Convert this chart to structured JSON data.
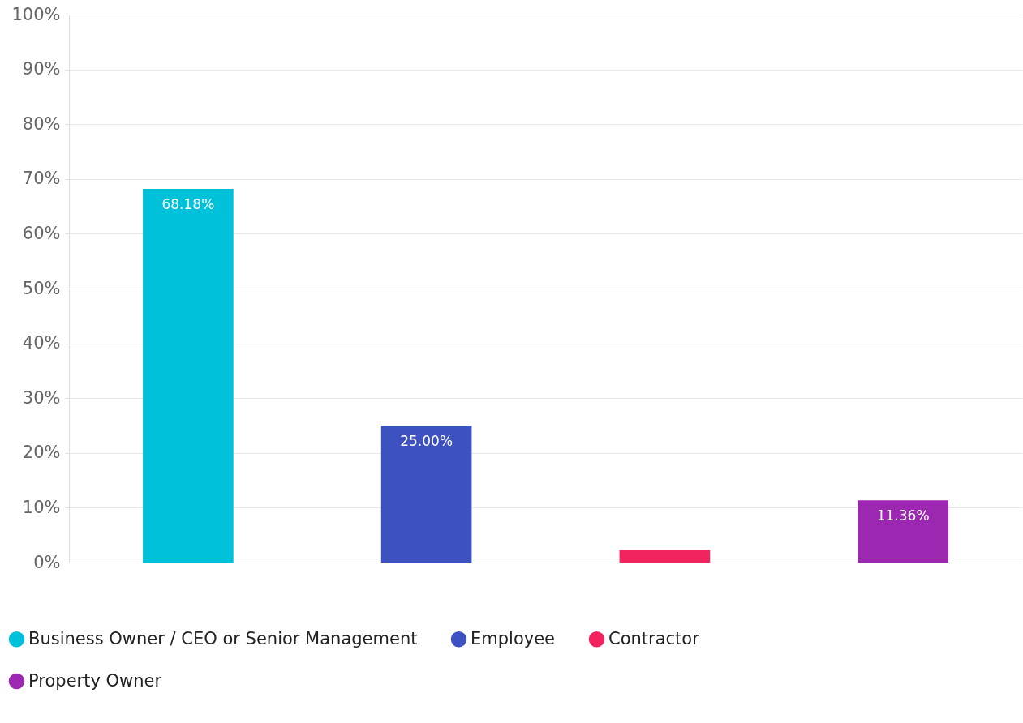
{
  "chart_data": {
    "type": "bar",
    "categories": [
      null,
      null,
      null,
      null
    ],
    "series": [
      {
        "name": "Business Owner / CEO or Senior Management",
        "color": "#00c1da",
        "values": [
          68.18,
          null,
          null,
          null
        ],
        "value_labels": [
          "68.18%",
          null,
          null,
          null
        ]
      },
      {
        "name": "Employee",
        "color": "#3d51c1",
        "values": [
          null,
          25.0,
          null,
          null
        ],
        "value_labels": [
          null,
          "25.00%",
          null,
          null
        ]
      },
      {
        "name": "Contractor",
        "color": "#f1245f",
        "values": [
          null,
          null,
          2.3,
          null
        ]
      },
      {
        "name": "Property Owner",
        "color": "#9c27b0",
        "values": [
          null,
          null,
          null,
          11.36
        ],
        "value_labels": [
          null,
          null,
          null,
          "11.36%"
        ]
      }
    ],
    "ylim": [
      0,
      100
    ],
    "yticks": [
      {
        "value": 0,
        "label": "0%"
      },
      {
        "value": 10,
        "label": "10%"
      },
      {
        "value": 20,
        "label": "20%"
      },
      {
        "value": 30,
        "label": "30%"
      },
      {
        "value": 40,
        "label": "40%"
      },
      {
        "value": 50,
        "label": "50%"
      },
      {
        "value": 60,
        "label": "60%"
      },
      {
        "value": 70,
        "label": "70%"
      },
      {
        "value": 80,
        "label": "80%"
      },
      {
        "value": 90,
        "label": "90%"
      },
      {
        "value": 100,
        "label": "100%"
      }
    ],
    "grid": "y",
    "legend": "bottom",
    "tick_labels": "y"
  }
}
